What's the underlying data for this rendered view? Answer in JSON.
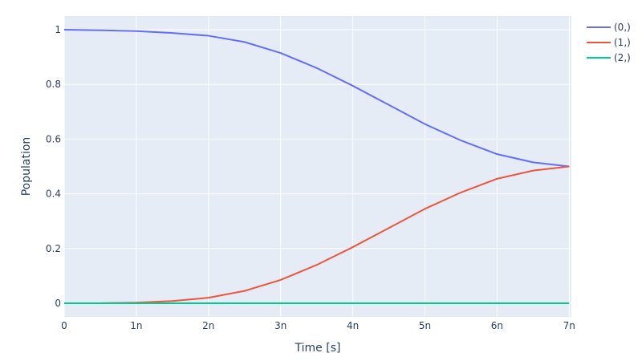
{
  "colors": {
    "plot_bg": "#e5ecf6",
    "grid": "#ffffff",
    "text": "#2a3f5f"
  },
  "chart_data": {
    "type": "line",
    "title": "",
    "xlabel": "Time [s]",
    "ylabel": "Population",
    "xlim": [
      0,
      7.03e-09
    ],
    "ylim": [
      -0.05,
      1.05
    ],
    "grid": true,
    "legend_position": "top-right",
    "x_ticks": [
      {
        "value": 0,
        "label": "0"
      },
      {
        "value": 1e-09,
        "label": "1n"
      },
      {
        "value": 2e-09,
        "label": "2n"
      },
      {
        "value": 3e-09,
        "label": "3n"
      },
      {
        "value": 4e-09,
        "label": "4n"
      },
      {
        "value": 5e-09,
        "label": "5n"
      },
      {
        "value": 6e-09,
        "label": "6n"
      },
      {
        "value": 7e-09,
        "label": "7n"
      }
    ],
    "y_ticks": [
      {
        "value": 0,
        "label": "0"
      },
      {
        "value": 0.2,
        "label": "0.2"
      },
      {
        "value": 0.4,
        "label": "0.4"
      },
      {
        "value": 0.6,
        "label": "0.6"
      },
      {
        "value": 0.8,
        "label": "0.8"
      },
      {
        "value": 1,
        "label": "1"
      }
    ],
    "x": [
      0,
      5e-10,
      1e-09,
      1.5e-09,
      2e-09,
      2.5e-09,
      3e-09,
      3.5e-09,
      4e-09,
      4.5e-09,
      5e-09,
      5.5e-09,
      6e-09,
      6.5e-09,
      7e-09
    ],
    "series": [
      {
        "name": "(0,)",
        "color": "#636efa",
        "values": [
          1.0,
          0.998,
          0.995,
          0.988,
          0.978,
          0.955,
          0.915,
          0.86,
          0.795,
          0.725,
          0.655,
          0.595,
          0.545,
          0.515,
          0.5
        ]
      },
      {
        "name": "(1,)",
        "color": "#ef553b",
        "values": [
          0.0,
          0.0,
          0.002,
          0.008,
          0.02,
          0.045,
          0.085,
          0.14,
          0.205,
          0.275,
          0.345,
          0.405,
          0.455,
          0.485,
          0.5
        ]
      },
      {
        "name": "(2,)",
        "color": "#00cc96",
        "values": [
          0.0,
          0.0,
          0.0,
          0.0,
          0.0,
          0.0,
          0.0,
          0.0,
          0.0,
          0.0,
          0.0,
          0.0,
          0.0,
          0.0,
          0.0
        ]
      }
    ]
  }
}
